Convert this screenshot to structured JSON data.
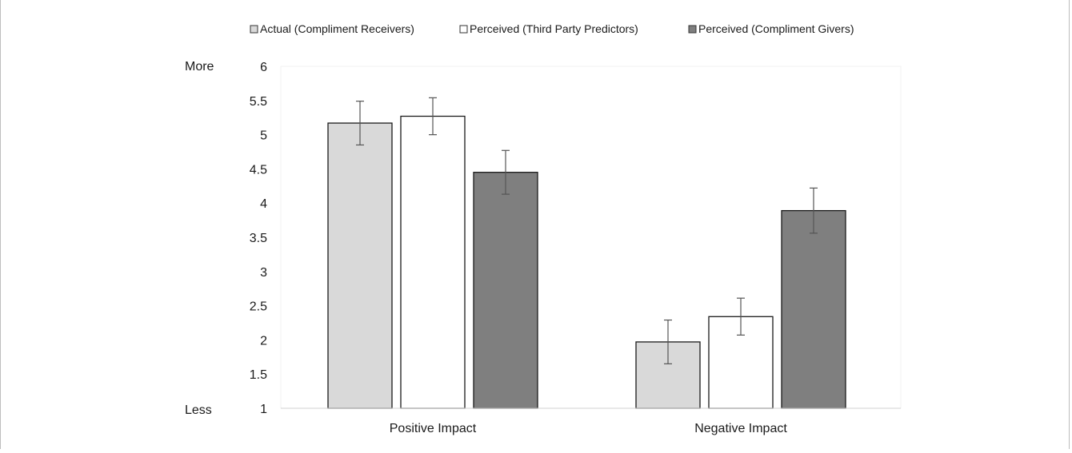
{
  "chart_data": {
    "type": "bar",
    "categories": [
      "Positive Impact",
      "Negative Impact"
    ],
    "series": [
      {
        "name": "Actual (Compliment Receivers)",
        "values": [
          5.17,
          1.97
        ],
        "errors": [
          0.32,
          0.32
        ],
        "color": "#d9d9d9"
      },
      {
        "name": "Perceived (Third Party Predictors)",
        "values": [
          5.27,
          2.34
        ],
        "errors": [
          0.27,
          0.27
        ],
        "color": "#ffffff"
      },
      {
        "name": "Perceived (Compliment Givers)",
        "values": [
          4.45,
          3.89
        ],
        "errors": [
          0.32,
          0.33
        ],
        "color": "#7f7f7f"
      }
    ],
    "ylim": [
      1,
      6
    ],
    "yticks": [
      "1",
      "1.5",
      "2",
      "2.5",
      "3",
      "3.5",
      "4",
      "4.5",
      "5",
      "5.5",
      "6"
    ],
    "y_end_labels": {
      "top": "More",
      "bottom": "Less"
    },
    "title": "",
    "xlabel": "",
    "ylabel": "",
    "legend_position": "top",
    "grid": false
  }
}
